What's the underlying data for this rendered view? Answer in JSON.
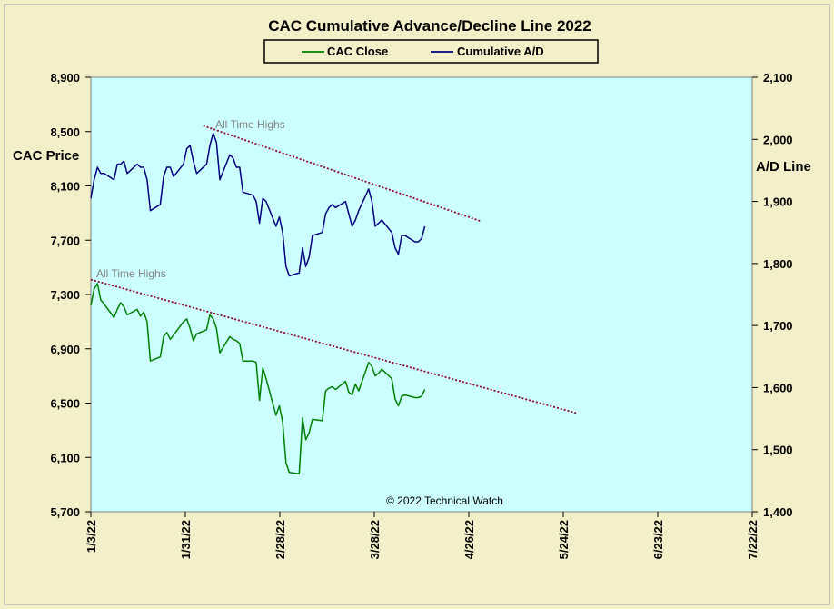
{
  "chart_data": {
    "type": "line",
    "title": "CAC Cumulative  Advance/Decline  Line  2022",
    "legend": {
      "placement": "top-center",
      "items": [
        "CAC Close",
        "Cumulative A/D"
      ]
    },
    "left_axis": {
      "label": "CAC Price",
      "ylim": [
        5700,
        8900
      ],
      "ticks": [
        "8,900",
        "8,500",
        "8,100",
        "7,700",
        "7,300",
        "6,900",
        "6,500",
        "6,100",
        "5,700"
      ]
    },
    "right_axis": {
      "label": "A/D Line",
      "ylim": [
        1400,
        2100
      ],
      "ticks": [
        "2,100",
        "2,000",
        "1,900",
        "1,800",
        "1,700",
        "1,600",
        "1,500",
        "1,400"
      ]
    },
    "x_axis": {
      "ticks": [
        "1/3/22",
        "1/31/22",
        "2/28/22",
        "3/28/22",
        "4/26/22",
        "5/24/22",
        "6/23/22",
        "7/22/22"
      ]
    },
    "annotations": {
      "ath_upper": "All Time Highs",
      "ath_lower": "All Time Highs",
      "copyright": "© 2022 Technical  Watch"
    },
    "series": [
      {
        "name": "CAC Close",
        "axis": "left",
        "color": "#008000",
        "x": [
          "2022-01-03",
          "2022-01-04",
          "2022-01-05",
          "2022-01-06",
          "2022-01-07",
          "2022-01-10",
          "2022-01-11",
          "2022-01-12",
          "2022-01-13",
          "2022-01-14",
          "2022-01-17",
          "2022-01-18",
          "2022-01-19",
          "2022-01-20",
          "2022-01-21",
          "2022-01-24",
          "2022-01-25",
          "2022-01-26",
          "2022-01-27",
          "2022-01-28",
          "2022-01-31",
          "2022-02-01",
          "2022-02-02",
          "2022-02-03",
          "2022-02-04",
          "2022-02-07",
          "2022-02-08",
          "2022-02-09",
          "2022-02-10",
          "2022-02-11",
          "2022-02-14",
          "2022-02-15",
          "2022-02-16",
          "2022-02-17",
          "2022-02-18",
          "2022-02-21",
          "2022-02-22",
          "2022-02-23",
          "2022-02-24",
          "2022-02-25",
          "2022-02-28",
          "2022-03-01",
          "2022-03-02",
          "2022-03-03",
          "2022-03-04",
          "2022-03-07",
          "2022-03-08",
          "2022-03-09",
          "2022-03-10",
          "2022-03-11",
          "2022-03-14",
          "2022-03-15",
          "2022-03-16",
          "2022-03-17",
          "2022-03-18",
          "2022-03-21",
          "2022-03-22",
          "2022-03-23",
          "2022-03-24",
          "2022-03-25",
          "2022-03-28",
          "2022-03-29",
          "2022-03-30",
          "2022-03-31",
          "2022-04-01",
          "2022-04-04",
          "2022-04-05",
          "2022-04-06",
          "2022-04-07",
          "2022-04-08",
          "2022-04-11",
          "2022-04-12",
          "2022-04-13",
          "2022-04-14"
        ],
        "values": [
          7220,
          7340,
          7380,
          7260,
          7230,
          7130,
          7190,
          7240,
          7210,
          7150,
          7190,
          7140,
          7170,
          7100,
          6810,
          6840,
          6990,
          7020,
          6970,
          7000,
          7100,
          7120,
          7050,
          6960,
          7010,
          7040,
          7150,
          7120,
          7050,
          6870,
          6990,
          6970,
          6960,
          6940,
          6810,
          6810,
          6800,
          6520,
          6760,
          6680,
          6410,
          6480,
          6360,
          6060,
          5990,
          5980,
          6390,
          6230,
          6280,
          6380,
          6370,
          6590,
          6610,
          6620,
          6600,
          6660,
          6580,
          6560,
          6640,
          6590,
          6800,
          6770,
          6700,
          6720,
          6750,
          6680,
          6530,
          6480,
          6550,
          6560,
          6540,
          6540,
          6550,
          6600
        ]
      },
      {
        "name": "Cumulative A/D",
        "axis": "right",
        "color": "#000080",
        "x": [
          "2022-01-03",
          "2022-01-04",
          "2022-01-05",
          "2022-01-06",
          "2022-01-07",
          "2022-01-10",
          "2022-01-11",
          "2022-01-12",
          "2022-01-13",
          "2022-01-14",
          "2022-01-17",
          "2022-01-18",
          "2022-01-19",
          "2022-01-20",
          "2022-01-21",
          "2022-01-24",
          "2022-01-25",
          "2022-01-26",
          "2022-01-27",
          "2022-01-28",
          "2022-01-31",
          "2022-02-01",
          "2022-02-02",
          "2022-02-03",
          "2022-02-04",
          "2022-02-07",
          "2022-02-08",
          "2022-02-09",
          "2022-02-10",
          "2022-02-11",
          "2022-02-14",
          "2022-02-15",
          "2022-02-16",
          "2022-02-17",
          "2022-02-18",
          "2022-02-21",
          "2022-02-22",
          "2022-02-23",
          "2022-02-24",
          "2022-02-25",
          "2022-02-28",
          "2022-03-01",
          "2022-03-02",
          "2022-03-03",
          "2022-03-04",
          "2022-03-07",
          "2022-03-08",
          "2022-03-09",
          "2022-03-10",
          "2022-03-11",
          "2022-03-14",
          "2022-03-15",
          "2022-03-16",
          "2022-03-17",
          "2022-03-18",
          "2022-03-21",
          "2022-03-22",
          "2022-03-23",
          "2022-03-24",
          "2022-03-25",
          "2022-03-28",
          "2022-03-29",
          "2022-03-30",
          "2022-03-31",
          "2022-04-01",
          "2022-04-04",
          "2022-04-05",
          "2022-04-06",
          "2022-04-07",
          "2022-04-08",
          "2022-04-11",
          "2022-04-12",
          "2022-04-13",
          "2022-04-14"
        ],
        "values": [
          1905,
          1935,
          1955,
          1945,
          1945,
          1935,
          1960,
          1960,
          1965,
          1945,
          1960,
          1955,
          1955,
          1935,
          1885,
          1895,
          1940,
          1955,
          1955,
          1940,
          1960,
          1985,
          1990,
          1965,
          1945,
          1960,
          1990,
          2010,
          1995,
          1935,
          1975,
          1970,
          1955,
          1955,
          1915,
          1910,
          1900,
          1865,
          1905,
          1900,
          1860,
          1875,
          1850,
          1795,
          1780,
          1785,
          1825,
          1795,
          1810,
          1845,
          1850,
          1880,
          1890,
          1895,
          1890,
          1900,
          1880,
          1860,
          1870,
          1885,
          1920,
          1900,
          1860,
          1865,
          1870,
          1850,
          1825,
          1815,
          1845,
          1845,
          1835,
          1835,
          1840,
          1860
        ]
      }
    ],
    "trendlines": [
      {
        "axis": "right",
        "from": [
          "2022-02-06",
          2022
        ],
        "to": [
          "2022-05-01",
          1868
        ]
      },
      {
        "axis": "left",
        "from": [
          "2022-01-03",
          7410
        ],
        "to": [
          "2022-05-30",
          6425
        ]
      }
    ]
  }
}
